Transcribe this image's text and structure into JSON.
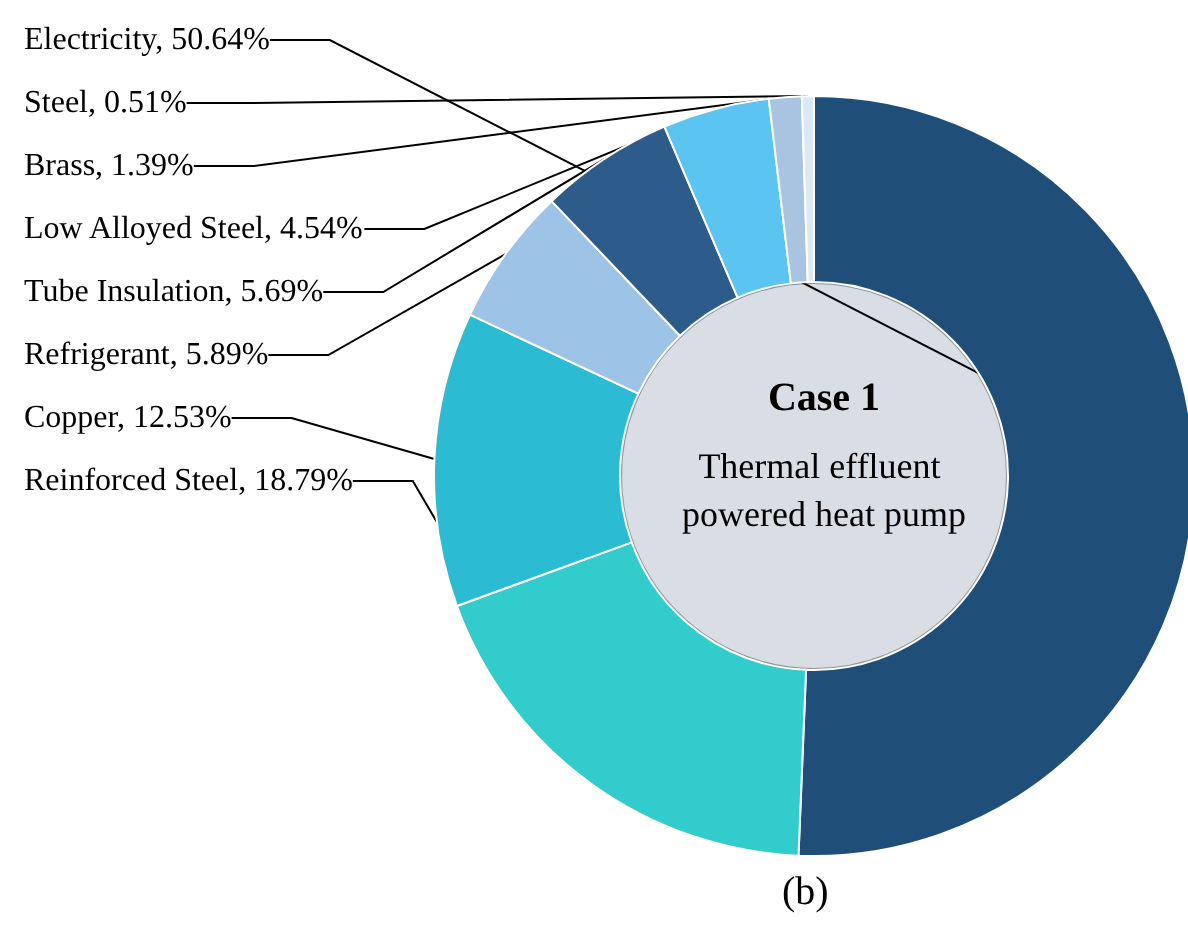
{
  "chart_data": {
    "type": "donut",
    "title": "Case 1",
    "subtitle": "Thermal effluent powered heat pump",
    "categories": [
      "Electricity",
      "Reinforced Steel",
      "Copper",
      "Refrigerant",
      "Tube Insulation",
      "Low Alloyed Steel",
      "Brass",
      "Steel"
    ],
    "values": [
      50.64,
      18.79,
      12.53,
      5.89,
      5.69,
      4.54,
      1.39,
      0.51
    ],
    "value_labels": [
      "50.64%",
      "18.79%",
      "12.53%",
      "5.89%",
      "5.69%",
      "4.54%",
      "1.39%",
      "0.51%"
    ],
    "colors": [
      "#1f4e79",
      "#33cccc",
      "#2bbcd4",
      "#9dc3e6",
      "#2e5c8a",
      "#5bc4f0",
      "#a9c4e0",
      "#dde8f3"
    ],
    "legend": false,
    "annotations": [
      "(b)"
    ]
  }
}
